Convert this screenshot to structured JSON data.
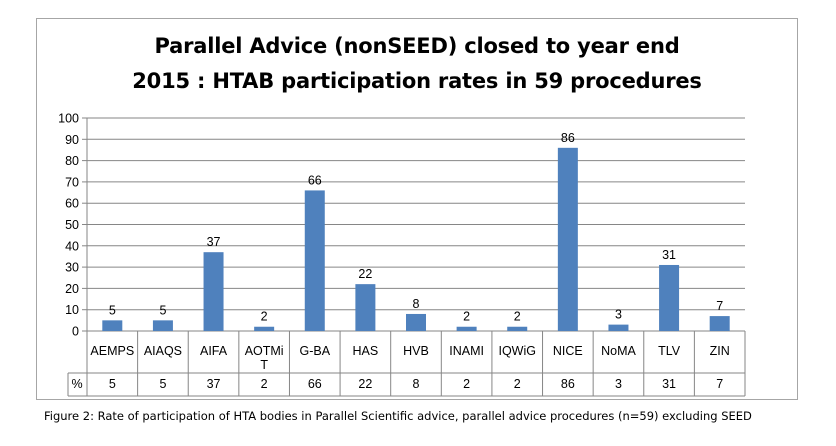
{
  "chart_data": {
    "type": "bar",
    "title": "Parallel Advice (nonSEED) closed to year end 2015 : HTAB participation rates in 59 procedures",
    "title_lines": [
      "Parallel Advice (nonSEED) closed to year end",
      "2015 : HTAB participation rates in 59 procedures"
    ],
    "categories": [
      "AEMPS",
      "AIAQS",
      "AIFA",
      "AOTMiT",
      "G-BA",
      "HAS",
      "HVB",
      "INAMI",
      "IQWiG",
      "NICE",
      "NoMA",
      "TLV",
      "ZIN"
    ],
    "category_lines": [
      [
        "AEMPS"
      ],
      [
        "AIAQS"
      ],
      [
        "AIFA"
      ],
      [
        "AOTMi",
        "T"
      ],
      [
        "G-BA"
      ],
      [
        "HAS"
      ],
      [
        "HVB"
      ],
      [
        "INAMI"
      ],
      [
        "IQWiG"
      ],
      [
        "NICE"
      ],
      [
        "NoMA"
      ],
      [
        "TLV"
      ],
      [
        "ZIN"
      ]
    ],
    "values": [
      5,
      5,
      37,
      2,
      66,
      22,
      8,
      2,
      2,
      86,
      3,
      31,
      7
    ],
    "data_labels": [
      "5",
      "5",
      "37",
      "2",
      "66",
      "22",
      "8",
      "2",
      "2",
      "86",
      "3",
      "31",
      "7"
    ],
    "ylim": [
      0,
      100
    ],
    "yticks": [
      0,
      10,
      20,
      30,
      40,
      50,
      60,
      70,
      80,
      90,
      100
    ],
    "xlabel": "",
    "ylabel": "",
    "grid": true,
    "legend": "none",
    "table": {
      "row_label": "%",
      "values": [
        "5",
        "5",
        "37",
        "2",
        "66",
        "22",
        "8",
        "2",
        "2",
        "86",
        "3",
        "31",
        "7"
      ]
    },
    "colors": {
      "bar": "#4f81bd",
      "gridline": "#868686",
      "axis": "#868686"
    }
  },
  "caption": "Figure 2: Rate of participation of HTA bodies in Parallel Scientific advice, parallel advice procedures (n=59) excluding SEED"
}
